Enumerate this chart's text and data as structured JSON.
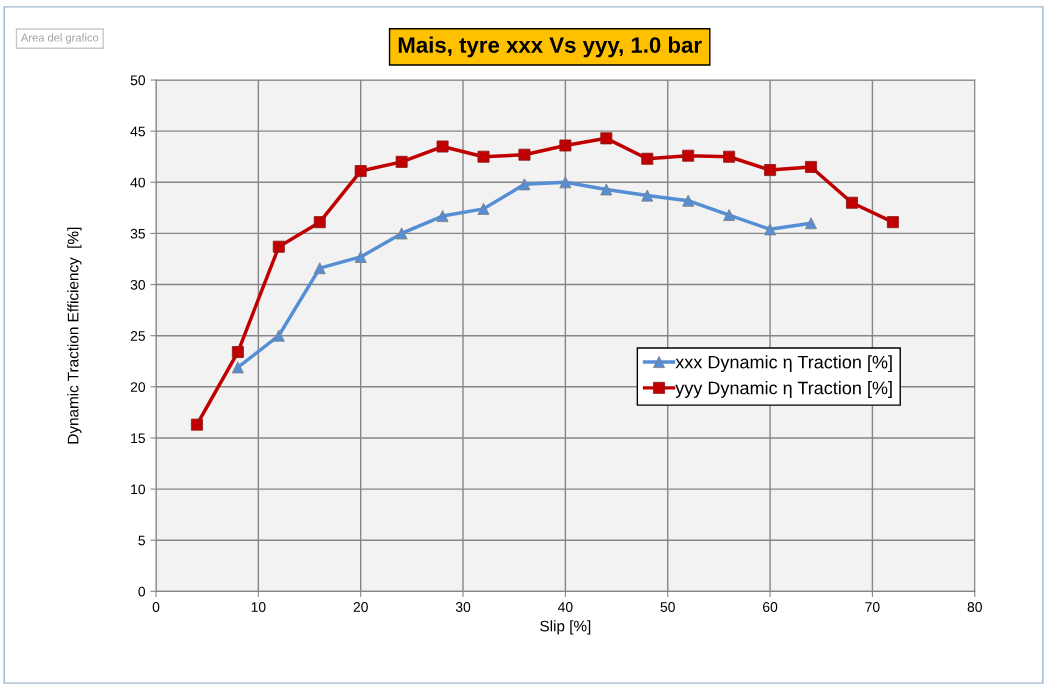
{
  "chart_data": {
    "type": "line",
    "title": "Mais, tyre xxx Vs yyy, 1.0 bar",
    "xlabel": "Slip [%]",
    "ylabel": "Dynamic Traction Efficiency  [%]",
    "annotations": [
      "Area del grafico"
    ],
    "series": [
      {
        "name": "xxx Dynamic η Traction [%]",
        "color": "#558ed5",
        "marker": "triangle",
        "x": [
          8,
          12,
          16,
          20,
          24,
          28,
          32,
          36,
          40,
          44,
          48,
          52,
          56,
          60,
          64
        ],
        "values": [
          21.9,
          25.0,
          31.6,
          32.7,
          35.0,
          36.7,
          37.4,
          39.8,
          40.0,
          39.3,
          38.7,
          38.2,
          36.8,
          35.4,
          36.0
        ]
      },
      {
        "name": "yyy Dynamic η Traction [%]",
        "color": "#c00000",
        "marker": "square",
        "x": [
          4,
          8,
          12,
          16,
          20,
          24,
          28,
          32,
          36,
          40,
          44,
          48,
          52,
          56,
          60,
          64,
          68,
          72
        ],
        "values": [
          16.3,
          23.4,
          33.7,
          36.1,
          41.1,
          42.0,
          43.5,
          42.5,
          42.7,
          43.6,
          44.3,
          42.3,
          42.6,
          42.5,
          41.2,
          41.5,
          38.0,
          36.1
        ]
      }
    ],
    "xlim": [
      0,
      80
    ],
    "xticks": [
      0,
      10,
      20,
      30,
      40,
      50,
      60,
      70,
      80
    ],
    "ylim": [
      0,
      50
    ],
    "yticks": [
      0,
      5,
      10,
      15,
      20,
      25,
      30,
      35,
      40,
      45,
      50
    ],
    "grid": true,
    "legend": "right"
  }
}
